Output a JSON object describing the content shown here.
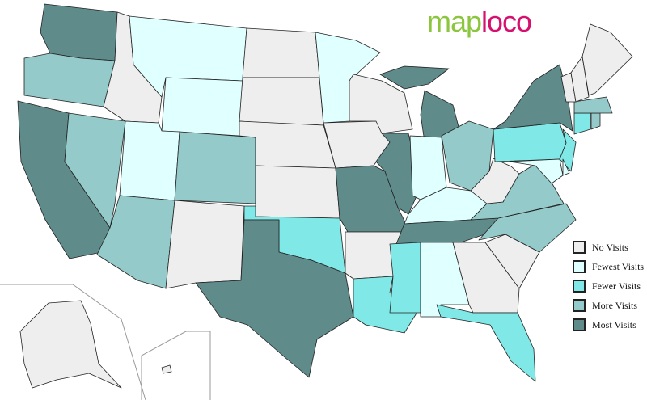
{
  "logo": {
    "part1": "map",
    "part2": "loco",
    "color1": "#8cc63f",
    "color2": "#d6106f"
  },
  "legend": [
    {
      "key": "none",
      "label": "No Visits",
      "color": "#eeeeee"
    },
    {
      "key": "fewest",
      "label": "Fewest Visits",
      "color": "#e0ffff"
    },
    {
      "key": "fewer",
      "label": "Fewer Visits",
      "color": "#80e8e6"
    },
    {
      "key": "more",
      "label": "More Visits",
      "color": "#94cac9"
    },
    {
      "key": "most",
      "label": "Most Visits",
      "color": "#5f8b8a"
    }
  ],
  "states": {
    "WA": "most",
    "OR": "more",
    "CA": "most",
    "NV": "more",
    "ID": "none",
    "MT": "fewest",
    "WY": "fewest",
    "UT": "fewest",
    "CO": "more",
    "AZ": "more",
    "NM": "none",
    "ND": "none",
    "SD": "none",
    "NE": "none",
    "KS": "none",
    "OK": "fewer",
    "TX": "most",
    "MN": "fewest",
    "IA": "none",
    "MO": "most",
    "AR": "none",
    "LA": "fewer",
    "WI": "none",
    "IL": "most",
    "MI": "most",
    "IN": "fewest",
    "OH": "more",
    "KY": "fewest",
    "TN": "most",
    "MS": "fewer",
    "AL": "fewest",
    "GA": "none",
    "FL": "fewer",
    "SC": "none",
    "NC": "more",
    "VA": "more",
    "WV": "none",
    "PA": "fewer",
    "NY": "most",
    "NJ": "fewer",
    "MD": "fewest",
    "DE": "fewest",
    "CT": "fewer",
    "RI": "more",
    "MA": "more",
    "VT": "none",
    "NH": "none",
    "ME": "none",
    "AK": "none",
    "HI": "none"
  }
}
